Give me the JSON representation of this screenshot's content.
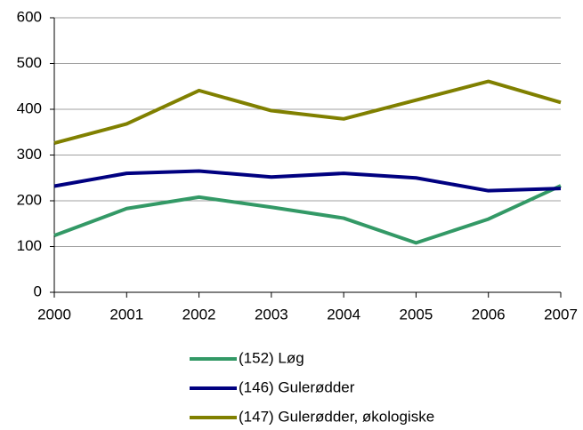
{
  "chart_data": {
    "type": "line",
    "x": [
      2000,
      2001,
      2002,
      2003,
      2004,
      2005,
      2006,
      2007
    ],
    "series": [
      {
        "name": "(152) Løg",
        "color": "#339966",
        "values": [
          124,
          183,
          208,
          186,
          162,
          108,
          160,
          233
        ]
      },
      {
        "name": "(146) Gulerødder",
        "color": "#000080",
        "values": [
          232,
          260,
          265,
          252,
          260,
          250,
          222,
          227
        ]
      },
      {
        "name": "(147) Gulerødder, økologiske",
        "color": "#808000",
        "values": [
          326,
          368,
          441,
          397,
          379,
          420,
          461,
          415
        ]
      }
    ],
    "xlim": [
      2000,
      2007
    ],
    "xticks": [
      2000,
      2001,
      2002,
      2003,
      2004,
      2005,
      2006,
      2007
    ],
    "ylim": [
      0,
      600
    ],
    "yticks": [
      0,
      100,
      200,
      300,
      400,
      500,
      600
    ],
    "grid": true
  }
}
